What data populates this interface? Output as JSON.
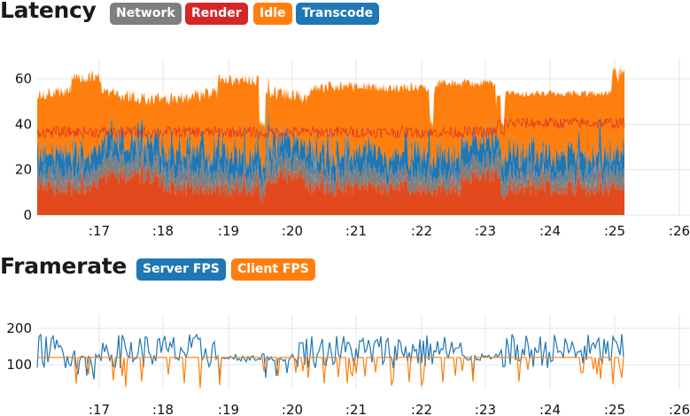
{
  "latency": {
    "title": "Latency",
    "legend": [
      {
        "label": "Network",
        "color": "#7f7f7f"
      },
      {
        "label": "Render",
        "color": "#d62728"
      },
      {
        "label": "Idle",
        "color": "#ff7f0e"
      },
      {
        "label": "Transcode",
        "color": "#1f77b4"
      }
    ]
  },
  "framerate": {
    "title": "Framerate",
    "legend": [
      {
        "label": "Server FPS",
        "color": "#1f77b4"
      },
      {
        "label": "Client FPS",
        "color": "#ff7f0e"
      }
    ]
  },
  "chart_data": [
    {
      "type": "area",
      "title": "Latency",
      "ylim": [
        0,
        68
      ],
      "yticks": [
        0,
        20,
        40,
        60
      ],
      "xticks": [
        ":17",
        ":18",
        ":19",
        ":20",
        ":21",
        ":22",
        ":23",
        ":24",
        ":25",
        ":26"
      ],
      "grid": true,
      "series": [
        {
          "name": "Render",
          "color": "#e24a1d",
          "approx_level": 10
        },
        {
          "name": "Network",
          "color": "#7f7f7f",
          "approx_level": 18
        },
        {
          "name": "Transcode",
          "color": "#1f77b4",
          "approx_level": 25
        },
        {
          "name": "Idle",
          "color": "#ff7f0e",
          "approx_level": 55
        }
      ]
    },
    {
      "type": "line",
      "title": "Framerate",
      "ylim": [
        40,
        200
      ],
      "yticks": [
        100,
        200
      ],
      "xticks": [
        ":17",
        ":18",
        ":19",
        ":20",
        ":21",
        ":22",
        ":23",
        ":24",
        ":25",
        ":26"
      ],
      "grid": true,
      "series": [
        {
          "name": "Server FPS",
          "color": "#1f77b4",
          "approx_level": 120
        },
        {
          "name": "Client FPS",
          "color": "#ff7f0e",
          "approx_level": 120
        }
      ]
    }
  ]
}
